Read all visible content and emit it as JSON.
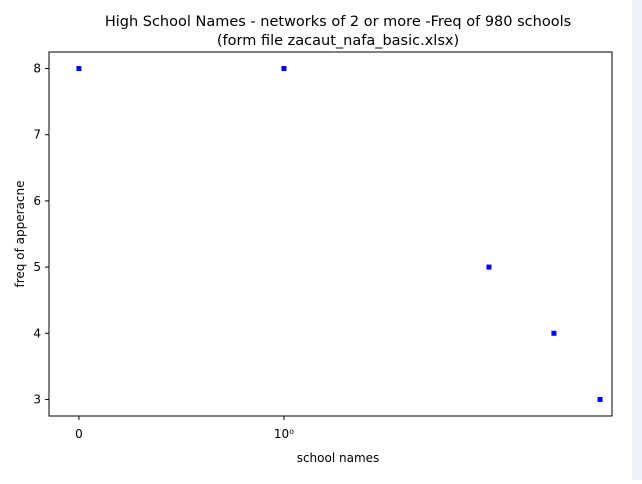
{
  "chart_data": {
    "type": "scatter",
    "title": "High School Names - networks of 2 or more -Freq of 980 schools",
    "subtitle": "(form file zacaut_nafa_basic.xlsx)",
    "x_label": "school names",
    "y_label": "freq of apperacne",
    "xscale": "symlog",
    "linthresh": 2,
    "x": [
      0,
      1,
      2,
      3,
      4
    ],
    "values": [
      8,
      8,
      5,
      4,
      3
    ],
    "color": "#0000ff",
    "xlim": [
      -0.146,
      4.31
    ],
    "xticks": [
      0,
      {
        "value": 1,
        "label": "10⁰"
      }
    ],
    "ylim": [
      2.75,
      8.25
    ],
    "yticks": [
      3,
      4,
      5,
      6,
      7,
      8
    ]
  }
}
